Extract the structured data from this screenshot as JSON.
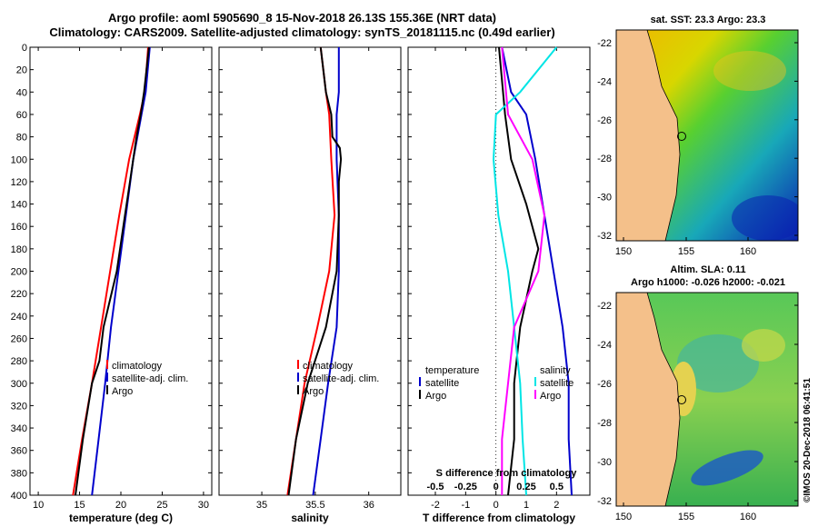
{
  "title_line1": "Argo profile: aoml 5905690_8 15-Nov-2018 26.13S 155.36E (NRT data)",
  "title_line2": "Climatology: CARS2009. Satellite-adjusted climatology: synTS_20181115.nc (0.49d earlier)",
  "sst_map": {
    "title": "sat. SST: 23.3 Argo: 23.3",
    "lat_ticks": [
      "-22",
      "-24",
      "-26",
      "-28",
      "-30",
      "-32"
    ],
    "lon_ticks": [
      "150",
      "155",
      "160"
    ]
  },
  "sla_map": {
    "title_line1": "Altim. SLA: 0.11",
    "title_line2": "Argo h1000: -0.026 h2000: -0.021",
    "lat_ticks": [
      "-22",
      "-24",
      "-26",
      "-28",
      "-30",
      "-32"
    ],
    "lon_ticks": [
      "150",
      "155",
      "160"
    ]
  },
  "credit": "©IMOS 20-Dec-2018 06:41:51",
  "colors": {
    "climatology": "#ff0000",
    "satellite": "#0000cc",
    "argo": "#000000",
    "salinity_diff": "#ff00ff",
    "satellite_salinity_diff": "#00e5e5",
    "land": "#f4c08a"
  },
  "chart_data": [
    {
      "type": "line",
      "xlabel": "temperature (deg C)",
      "ylabel": "",
      "xlim": [
        9,
        31
      ],
      "ylim": [
        400,
        0
      ],
      "x_ticks": [
        "10",
        "15",
        "20",
        "25",
        "30"
      ],
      "y_ticks": [
        "0",
        "20",
        "40",
        "60",
        "80",
        "100",
        "120",
        "140",
        "160",
        "180",
        "200",
        "220",
        "240",
        "260",
        "280",
        "300",
        "320",
        "340",
        "360",
        "380",
        "400"
      ],
      "legend": [
        "climatology",
        "satellite-adj. clim.",
        "Argo"
      ],
      "series": [
        {
          "name": "climatology",
          "depth": [
            0,
            40,
            60,
            100,
            150,
            200,
            250,
            300,
            350,
            400
          ],
          "values": [
            23.3,
            22.9,
            22.3,
            21.0,
            19.8,
            18.7,
            17.6,
            16.5,
            15.3,
            14.2
          ]
        },
        {
          "name": "satellite-adj. clim.",
          "depth": [
            0,
            40,
            60,
            100,
            150,
            200,
            250,
            300,
            350,
            400
          ],
          "values": [
            23.5,
            23.0,
            22.5,
            21.5,
            20.6,
            19.7,
            18.8,
            18.1,
            17.3,
            16.5
          ]
        },
        {
          "name": "Argo",
          "depth": [
            0,
            40,
            60,
            80,
            100,
            120,
            150,
            200,
            250,
            280,
            300,
            350,
            400
          ],
          "values": [
            23.4,
            22.8,
            22.4,
            21.9,
            21.5,
            21.1,
            20.5,
            19.5,
            17.9,
            17.4,
            16.5,
            15.4,
            14.5
          ]
        }
      ]
    },
    {
      "type": "line",
      "xlabel": "salinity",
      "ylabel": "",
      "xlim": [
        34.6,
        36.3
      ],
      "ylim": [
        400,
        0
      ],
      "x_ticks": [
        "35",
        "35.5",
        "36"
      ],
      "legend": [
        "climatology",
        "satellite-adj. clim.",
        "Argo"
      ],
      "series": [
        {
          "name": "climatology",
          "depth": [
            0,
            40,
            60,
            100,
            150,
            200,
            250,
            300,
            350,
            400
          ],
          "values": [
            35.55,
            35.6,
            35.63,
            35.65,
            35.68,
            35.63,
            35.52,
            35.4,
            35.32,
            35.24
          ]
        },
        {
          "name": "satellite-adj. clim.",
          "depth": [
            0,
            40,
            60,
            100,
            150,
            200,
            250,
            300,
            350,
            400
          ],
          "values": [
            35.72,
            35.72,
            35.7,
            35.7,
            35.72,
            35.72,
            35.7,
            35.62,
            35.55,
            35.48
          ]
        },
        {
          "name": "Argo",
          "depth": [
            0,
            40,
            60,
            80,
            90,
            100,
            120,
            150,
            200,
            250,
            300,
            350,
            400
          ],
          "values": [
            35.55,
            35.6,
            35.65,
            35.66,
            35.73,
            35.74,
            35.72,
            35.72,
            35.7,
            35.6,
            35.43,
            35.32,
            35.25
          ]
        }
      ]
    },
    {
      "type": "line",
      "xlabel": "T difference from climatology",
      "ylabel": "",
      "xlim": [
        -2.9,
        3.1
      ],
      "ylim": [
        400,
        0
      ],
      "x_ticks": [
        "-2",
        "-1",
        "0",
        "1",
        "2"
      ],
      "secondary_xlabel": "S difference from climatology",
      "secondary_ticks": [
        "-0.5",
        "-0.25",
        "0",
        "0.25",
        "0.5"
      ],
      "legend": [
        "temperature",
        "satellite",
        "Argo",
        "salinity",
        "satellite",
        "Argo"
      ],
      "series": [
        {
          "name": "temperature satellite",
          "depth": [
            0,
            40,
            60,
            100,
            150,
            200,
            250,
            300,
            350,
            400
          ],
          "values": [
            0.2,
            0.5,
            1.0,
            1.3,
            1.6,
            1.9,
            2.2,
            2.4,
            2.4,
            2.5
          ]
        },
        {
          "name": "temperature Argo",
          "depth": [
            0,
            60,
            100,
            140,
            180,
            200,
            250,
            300,
            350,
            400
          ],
          "values": [
            0.1,
            0.3,
            0.5,
            1.0,
            1.4,
            1.2,
            0.8,
            0.6,
            0.6,
            0.4
          ]
        },
        {
          "name": "salinity satellite",
          "depth": [
            0,
            40,
            60,
            100,
            150,
            200,
            250,
            300,
            350,
            400
          ],
          "values": [
            0.5,
            0.2,
            0.0,
            -0.02,
            0.02,
            0.1,
            0.15,
            0.2,
            0.22,
            0.25
          ]
        },
        {
          "name": "salinity Argo",
          "depth": [
            0,
            60,
            100,
            150,
            200,
            250,
            300,
            350,
            400
          ],
          "values": [
            0.05,
            0.1,
            0.3,
            0.4,
            0.35,
            0.15,
            0.1,
            0.05,
            0.05
          ]
        }
      ]
    }
  ]
}
